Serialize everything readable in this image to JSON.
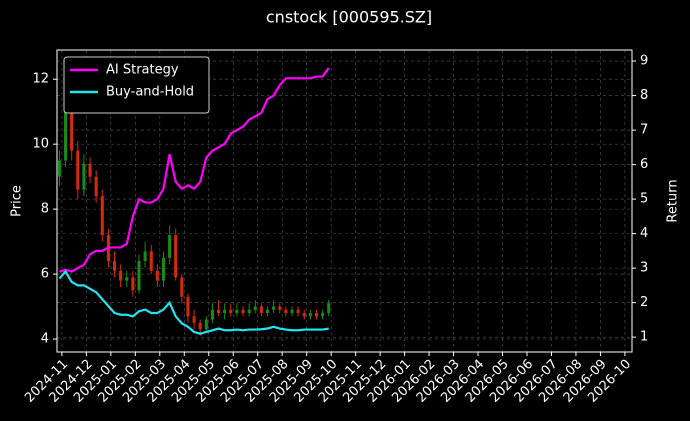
{
  "chart_data": {
    "type": "candlestick",
    "title": "cnstock [000595.SZ]",
    "ylabel": "Price",
    "y2label": "Return",
    "x": [
      -0.1,
      0.15,
      0.4,
      0.65,
      0.9,
      1.15,
      1.4,
      1.65,
      1.9,
      2.15,
      2.4,
      2.65,
      2.9,
      3.15,
      3.4,
      3.65,
      3.9,
      4.15,
      4.4,
      4.65,
      4.9,
      5.15,
      5.4,
      5.65,
      5.9,
      6.15,
      6.4,
      6.65,
      6.9,
      7.15,
      7.4,
      7.65,
      7.9,
      8.15,
      8.4,
      8.65,
      8.9,
      9.15,
      9.4,
      9.65,
      9.9,
      10.15,
      10.4,
      10.65,
      10.9
    ],
    "open": [
      9.0,
      9.5,
      11.5,
      9.8,
      8.6,
      9.4,
      9.0,
      8.4,
      7.2,
      6.4,
      6.1,
      5.8,
      5.9,
      5.5,
      6.4,
      6.7,
      6.1,
      5.8,
      6.5,
      7.2,
      5.9,
      5.3,
      4.7,
      4.5,
      4.3,
      4.6,
      4.9,
      4.8,
      4.9,
      4.8,
      4.9,
      4.8,
      4.9,
      5.0,
      4.8,
      4.9,
      5.0,
      4.9,
      4.8,
      4.9,
      4.8,
      4.7,
      4.8,
      4.7,
      4.8
    ],
    "high": [
      9.8,
      12.2,
      11.9,
      10.1,
      9.7,
      9.6,
      9.2,
      8.6,
      7.4,
      6.7,
      6.3,
      6.1,
      6.1,
      6.6,
      7.0,
      6.9,
      6.3,
      6.7,
      7.5,
      7.4,
      6.0,
      5.4,
      4.9,
      4.6,
      4.7,
      5.1,
      5.2,
      5.1,
      5.1,
      5.1,
      5.0,
      5.1,
      5.2,
      5.1,
      5.0,
      5.2,
      5.1,
      5.0,
      5.0,
      5.0,
      4.9,
      4.9,
      4.9,
      4.9,
      5.2
    ],
    "low": [
      8.7,
      9.3,
      9.5,
      8.3,
      8.4,
      8.8,
      8.2,
      7.0,
      6.2,
      5.9,
      5.6,
      5.6,
      5.3,
      5.4,
      6.2,
      6.0,
      5.6,
      5.6,
      6.3,
      5.8,
      5.1,
      4.5,
      4.3,
      4.1,
      4.2,
      4.5,
      4.7,
      4.6,
      4.7,
      4.7,
      4.7,
      4.7,
      4.8,
      4.7,
      4.7,
      4.8,
      4.8,
      4.7,
      4.7,
      4.7,
      4.6,
      4.6,
      4.6,
      4.6,
      4.7
    ],
    "close": [
      9.5,
      11.5,
      9.8,
      8.6,
      9.4,
      9.0,
      8.4,
      7.2,
      6.4,
      6.1,
      5.8,
      5.9,
      5.5,
      6.4,
      6.7,
      6.1,
      5.8,
      6.5,
      7.2,
      5.9,
      5.3,
      4.7,
      4.5,
      4.3,
      4.6,
      4.9,
      4.8,
      4.9,
      4.8,
      4.9,
      4.8,
      4.9,
      5.0,
      4.8,
      4.9,
      5.0,
      4.9,
      4.8,
      4.9,
      4.8,
      4.7,
      4.8,
      4.7,
      4.8,
      5.1
    ],
    "up_color": "#1a8a1a",
    "down_color": "#d62a0e",
    "series": [
      {
        "name": "AI Strategy",
        "color": "#ff00ff",
        "axis": "y2",
        "values": [
          2.9,
          2.95,
          2.9,
          3.0,
          3.1,
          3.4,
          3.5,
          3.5,
          3.6,
          3.6,
          3.6,
          3.7,
          4.5,
          5.0,
          4.9,
          4.9,
          5.0,
          5.3,
          6.3,
          5.5,
          5.3,
          5.4,
          5.3,
          5.5,
          6.2,
          6.4,
          6.5,
          6.6,
          6.9,
          7.0,
          7.1,
          7.3,
          7.4,
          7.5,
          7.9,
          8.0,
          8.3,
          8.5,
          8.5,
          8.5,
          8.5,
          8.5,
          8.55,
          8.55,
          8.8
        ]
      },
      {
        "name": "Buy-and-Hold",
        "color": "#22e5f0",
        "axis": "y2",
        "values": [
          2.7,
          2.9,
          2.6,
          2.5,
          2.5,
          2.4,
          2.3,
          2.1,
          1.9,
          1.7,
          1.65,
          1.65,
          1.6,
          1.75,
          1.8,
          1.7,
          1.7,
          1.8,
          2.0,
          1.6,
          1.4,
          1.3,
          1.15,
          1.1,
          1.15,
          1.2,
          1.25,
          1.2,
          1.2,
          1.22,
          1.2,
          1.22,
          1.22,
          1.23,
          1.25,
          1.3,
          1.25,
          1.22,
          1.2,
          1.2,
          1.22,
          1.22,
          1.22,
          1.22,
          1.25
        ]
      }
    ],
    "xlim": [
      -0.2,
      23.29
    ],
    "xticks": [
      {
        "value": 0,
        "label": "2024-11"
      },
      {
        "value": 1,
        "label": "2024-12"
      },
      {
        "value": 2,
        "label": "2025-01"
      },
      {
        "value": 3,
        "label": "2025-02"
      },
      {
        "value": 4,
        "label": "2025-03"
      },
      {
        "value": 5,
        "label": "2025-04"
      },
      {
        "value": 6,
        "label": "2025-05"
      },
      {
        "value": 7,
        "label": "2025-06"
      },
      {
        "value": 8,
        "label": "2025-07"
      },
      {
        "value": 9,
        "label": "2025-08"
      },
      {
        "value": 10,
        "label": "2025-09"
      },
      {
        "value": 11,
        "label": "2025-10"
      },
      {
        "value": 12,
        "label": "2025-11"
      },
      {
        "value": 13,
        "label": "2025-12"
      },
      {
        "value": 14,
        "label": "2026-01"
      },
      {
        "value": 15,
        "label": "2026-02"
      },
      {
        "value": 16,
        "label": "2026-03"
      },
      {
        "value": 17,
        "label": "2026-04"
      },
      {
        "value": 18,
        "label": "2026-05"
      },
      {
        "value": 19,
        "label": "2026-06"
      },
      {
        "value": 20,
        "label": "2026-07"
      },
      {
        "value": 21,
        "label": "2026-08"
      },
      {
        "value": 22,
        "label": "2026-09"
      },
      {
        "value": 23,
        "label": "2026-10"
      }
    ],
    "ylim": [
      3.6,
      12.9
    ],
    "yticks": [
      4,
      6,
      8,
      10,
      12
    ],
    "y2lim": [
      0.57,
      9.32
    ],
    "y2ticks": [
      1,
      2,
      3,
      4,
      5,
      6,
      7,
      8,
      9
    ],
    "grid": true,
    "legend": "upper left"
  }
}
